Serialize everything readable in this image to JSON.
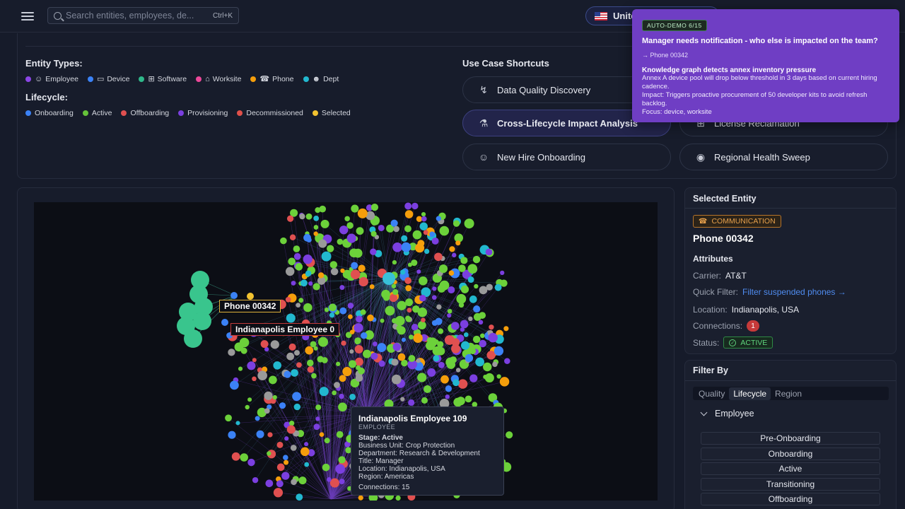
{
  "search": {
    "placeholder": "Search entities, employees, de...",
    "shortcut": "Ctrl+K"
  },
  "region": {
    "label": "Unite"
  },
  "entity_types": {
    "title": "Entity Types:",
    "items": [
      {
        "label": "Employee",
        "color": "#8b46e6",
        "icon": "person-icon"
      },
      {
        "label": "Device",
        "color": "#3b82f6",
        "icon": "laptop-icon"
      },
      {
        "label": "Software",
        "color": "#2fb88a",
        "icon": "grid-icon"
      },
      {
        "label": "Worksite",
        "color": "#ec4899",
        "icon": "house-icon"
      },
      {
        "label": "Phone",
        "color": "#f59e0b",
        "icon": "phone-icon"
      },
      {
        "label": "Dept",
        "color": "#22b8cf",
        "icon": "people-icon"
      }
    ]
  },
  "lifecycle": {
    "title": "Lifecycle:",
    "items": [
      {
        "label": "Onboarding",
        "color": "#3b82f6"
      },
      {
        "label": "Active",
        "color": "#65c23a"
      },
      {
        "label": "Offboarding",
        "color": "#e05050"
      },
      {
        "label": "Provisioning",
        "color": "#7b3fe0"
      },
      {
        "label": "Decommissioned",
        "color": "#e0504a"
      },
      {
        "label": "Selected",
        "color": "#f2c230"
      }
    ]
  },
  "use_cases": {
    "title": "Use Case Shortcuts",
    "items": [
      {
        "label": "Data Quality Discovery",
        "icon": "lightning-icon"
      },
      {
        "label": "Cross-Lifecycle Impact Analysis",
        "icon": "flask-icon",
        "active": true
      },
      {
        "label": "New Hire Onboarding",
        "icon": "person-icon"
      },
      {
        "label": "License Reclamation",
        "icon": "grid-icon"
      },
      {
        "label": "Regional Health Sweep",
        "icon": "globe-icon"
      }
    ]
  },
  "graph": {
    "label_phone": "Phone 00342",
    "label_employee": "Indianapolis Employee 0",
    "tooltip": {
      "title": "Indianapolis Employee 109",
      "subtitle": "EMPLOYEE",
      "stage": "Stage: Active",
      "business_unit": "Business Unit: Crop Protection",
      "department": "Department: Research & Development",
      "job_title": "Title: Manager",
      "location": "Location: Indianapolis, USA",
      "region": "Region: Americas",
      "connections": "Connections: 15"
    }
  },
  "selected": {
    "title": "Selected Entity",
    "type_badge": "COMMUNICATION",
    "name": "Phone 00342",
    "attributes_title": "Attributes",
    "carrier_key": "Carrier:",
    "carrier": "AT&T",
    "quick_filter_key": "Quick Filter:",
    "quick_filter": "Filter suspended phones →",
    "location_key": "Location:",
    "location": "Indianapolis, USA",
    "connections_key": "Connections:",
    "connections": "1",
    "status_key": "Status:",
    "status": "ACTIVE"
  },
  "filter": {
    "title": "Filter By",
    "tabs": [
      "Quality",
      "Lifecycle",
      "Region"
    ],
    "active_tab": "Lifecycle",
    "group": "Employee",
    "stages": [
      "Pre-Onboarding",
      "Onboarding",
      "Active",
      "Transitioning",
      "Offboarding"
    ]
  },
  "demo": {
    "tag": "AUTO-DEMO 6/15",
    "question": "Manager needs notification - who else is impacted on the team?",
    "ref": "→ Phone 00342",
    "heading": "Knowledge graph detects annex inventory pressure",
    "line1": "Annex A device pool will drop below threshold in 3 days based on current hiring cadence.",
    "line2": "Impact: Triggers proactive procurement of 50 developer kits to avoid refresh backlog.",
    "line3": "Focus: device, worksite"
  }
}
